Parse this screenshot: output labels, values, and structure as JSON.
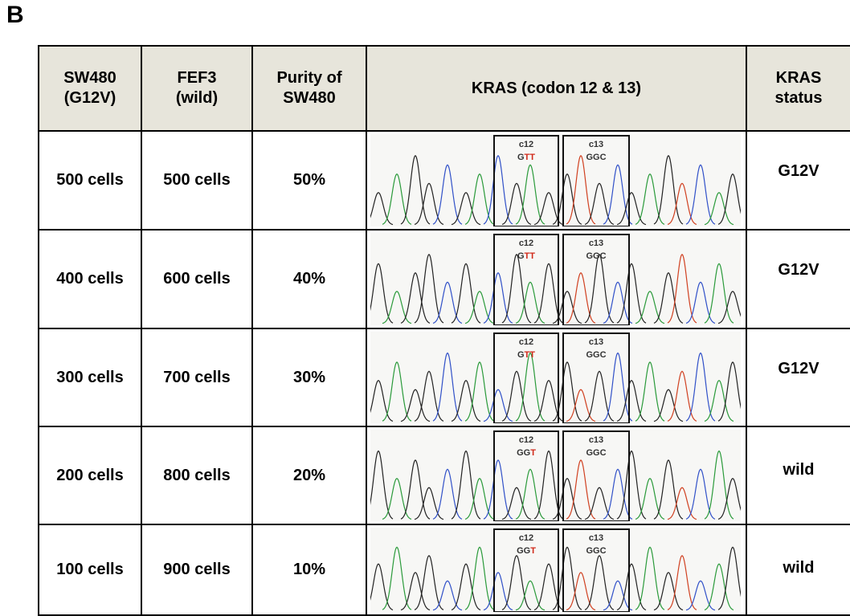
{
  "panel_label": "B",
  "table": {
    "header": [
      [
        "SW480",
        "(G12V)"
      ],
      [
        "FEF3",
        "(wild)"
      ],
      [
        "Purity of",
        "SW480"
      ],
      [
        "KRAS (codon 12 & 13)"
      ],
      [
        "KRAS",
        "status"
      ]
    ],
    "rows": [
      {
        "sw480": "500 cells",
        "fef3": "500 cells",
        "purity": "50%",
        "trace": {
          "c12_label": "c12",
          "c12_codon": "GTT",
          "c13_label": "c13",
          "c13_codon": "GGC"
        },
        "status": "G12V"
      },
      {
        "sw480": "400 cells",
        "fef3": "600 cells",
        "purity": "40%",
        "trace": {
          "c12_label": "c12",
          "c12_codon": "GTT",
          "c13_label": "c13",
          "c13_codon": "GGC"
        },
        "status": "G12V"
      },
      {
        "sw480": "300 cells",
        "fef3": "700 cells",
        "purity": "30%",
        "trace": {
          "c12_label": "c12",
          "c12_codon": "GTT",
          "c13_label": "c13",
          "c13_codon": "GGC"
        },
        "status": "G12V"
      },
      {
        "sw480": "200 cells",
        "fef3": "800 cells",
        "purity": "20%",
        "trace": {
          "c12_label": "c12",
          "c12_codon": "GGT",
          "c13_label": "c13",
          "c13_codon": "GGC"
        },
        "status": "wild"
      },
      {
        "sw480": "100 cells",
        "fef3": "900 cells",
        "purity": "10%",
        "trace": {
          "c12_label": "c12",
          "c12_codon": "GGT",
          "c13_label": "c13",
          "c13_codon": "GGC"
        },
        "status": "wild"
      }
    ]
  }
}
